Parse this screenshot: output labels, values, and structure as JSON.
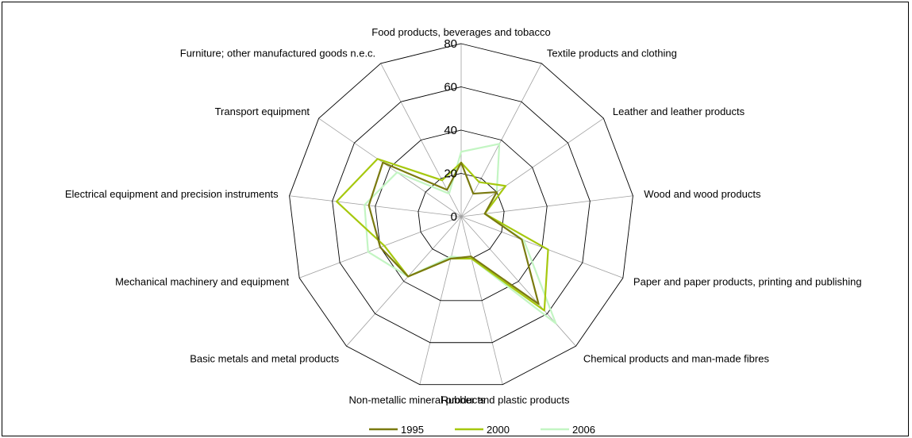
{
  "chart_data": {
    "type": "radar",
    "title": "",
    "categories": [
      "Food products, beverages and tobacco",
      "Textile products and clothing",
      "Leather and leather products",
      "Wood and wood products",
      "Paper and paper products, printing and publishing",
      "Chemical products and man-made fibres",
      "Rubber and plastic products",
      "Non-metallic mineral products",
      "Basic metals and metal products",
      "Mechanical machinery and equipment",
      "Electrical equipment and precision instruments",
      "Transport equipment",
      "Furniture; other manufactured goods n.e.c."
    ],
    "rlim": [
      0,
      80
    ],
    "rticks": [
      0,
      20,
      40,
      60,
      80
    ],
    "grid": true,
    "legend": "bottom",
    "series": [
      {
        "name": "1995",
        "color": "#7a7a10",
        "values": [
          25,
          12,
          20,
          11,
          30,
          54,
          19,
          20,
          37,
          40,
          43,
          44,
          14
        ]
      },
      {
        "name": "2000",
        "color": "#a6c80e",
        "values": [
          25,
          18,
          25,
          11,
          43,
          58,
          20,
          20,
          37,
          38,
          58,
          47,
          19
        ]
      },
      {
        "name": "2006",
        "color": "#c3f5c3",
        "values": [
          30,
          38,
          20,
          11,
          31,
          66,
          20,
          19,
          37,
          46,
          45,
          36,
          12
        ]
      }
    ]
  }
}
